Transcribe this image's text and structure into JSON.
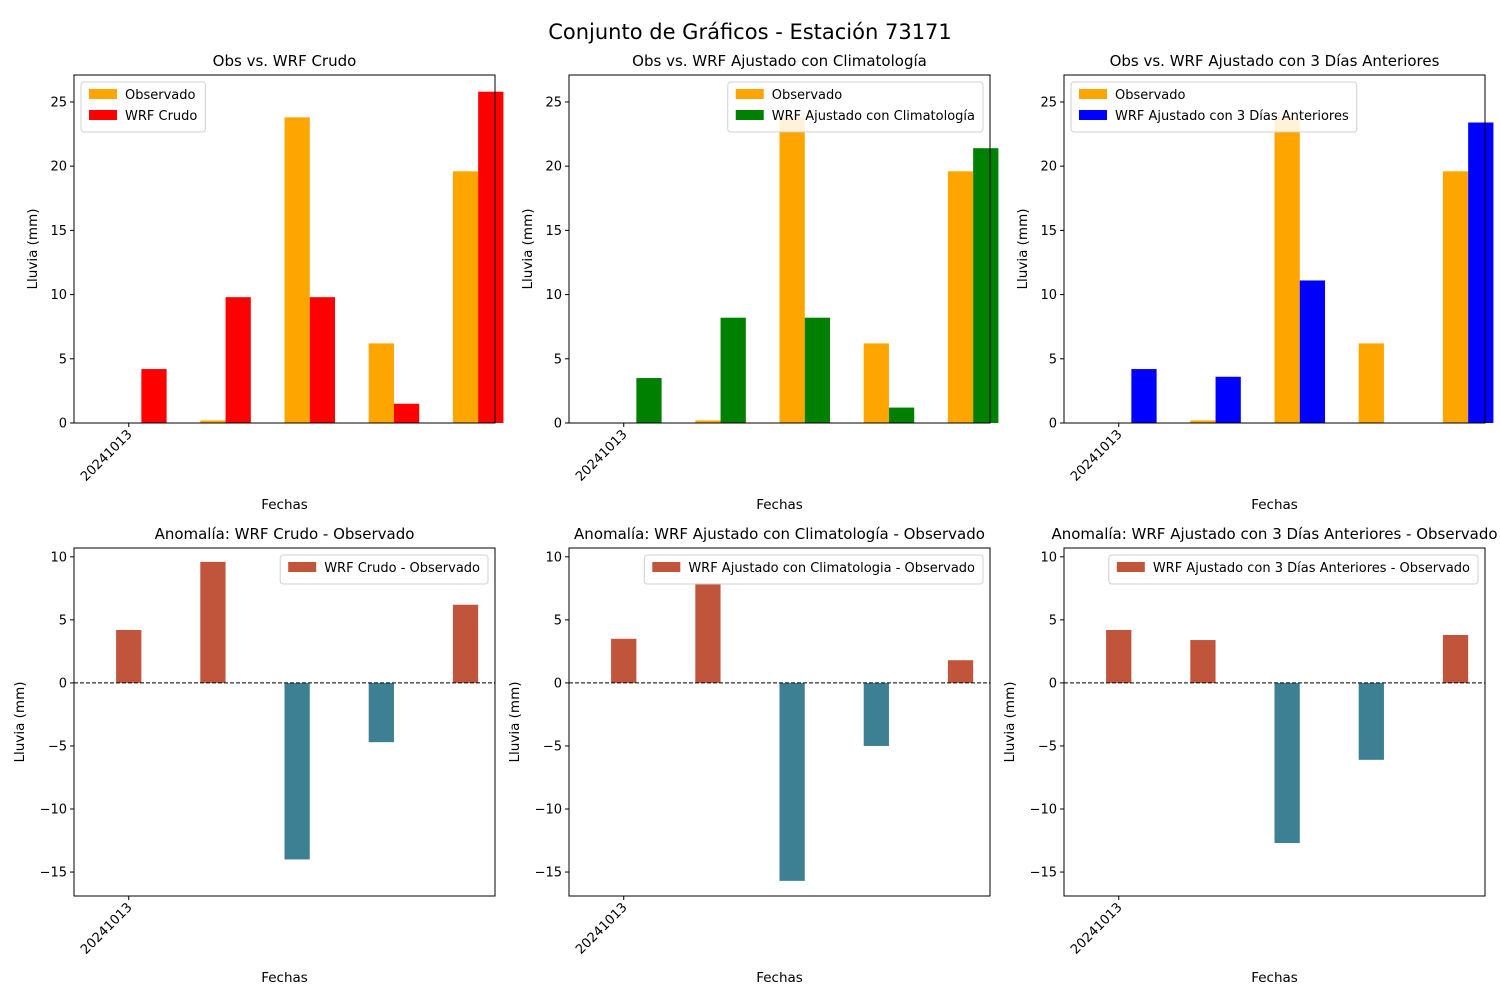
{
  "figure": {
    "suptitle": "Conjunto de Gráficos - Estación 73171"
  },
  "chart_data": [
    {
      "type": "bar",
      "title": "Obs vs. WRF Crudo",
      "xlabel": "Fechas",
      "ylabel": "Lluvia (mm)",
      "ylim": [
        0,
        27.1
      ],
      "yticks": [
        0,
        5,
        10,
        15,
        20,
        25
      ],
      "xtick_labels": [
        "20241013"
      ],
      "legend_position": "upper-left",
      "series": [
        {
          "name": "Observado",
          "color": "#ffa500",
          "values": [
            0,
            0.2,
            23.8,
            6.2,
            19.6
          ]
        },
        {
          "name": "WRF Crudo",
          "color": "#ff0000",
          "values": [
            4.2,
            9.8,
            9.8,
            1.5,
            25.8
          ]
        }
      ]
    },
    {
      "type": "bar",
      "title": "Obs vs. WRF Ajustado con Climatología",
      "xlabel": "Fechas",
      "ylabel": "Lluvia (mm)",
      "ylim": [
        0,
        27.1
      ],
      "yticks": [
        0,
        5,
        10,
        15,
        20,
        25
      ],
      "xtick_labels": [
        "20241013"
      ],
      "legend_position": "upper-right",
      "series": [
        {
          "name": "Observado",
          "color": "#ffa500",
          "values": [
            0,
            0.2,
            23.8,
            6.2,
            19.6
          ]
        },
        {
          "name": "WRF Ajustado con Climatología",
          "color": "#008000",
          "values": [
            3.5,
            8.2,
            8.2,
            1.2,
            21.4
          ]
        }
      ]
    },
    {
      "type": "bar",
      "title": "Obs vs. WRF Ajustado con 3 Días Anteriores",
      "xlabel": "Fechas",
      "ylabel": "Lluvia (mm)",
      "ylim": [
        0,
        27.1
      ],
      "yticks": [
        0,
        5,
        10,
        15,
        20,
        25
      ],
      "xtick_labels": [
        "20241013"
      ],
      "legend_position": "upper-left",
      "series": [
        {
          "name": "Observado",
          "color": "#ffa500",
          "values": [
            0,
            0.2,
            23.8,
            6.2,
            19.6
          ]
        },
        {
          "name": "WRF Ajustado con 3 Días Anteriores",
          "color": "#0000ff",
          "values": [
            4.2,
            3.6,
            11.1,
            0,
            23.4
          ]
        }
      ]
    },
    {
      "type": "bar",
      "title": "Anomalía: WRF Crudo - Observado",
      "xlabel": "Fechas",
      "ylabel": "Lluvia (mm)",
      "ylim": [
        -16.9,
        10.7
      ],
      "yticks": [
        -15,
        -10,
        -5,
        0,
        5,
        10
      ],
      "xtick_labels": [
        "20241013"
      ],
      "legend_position": "upper-right",
      "positive_color": "#c1553b",
      "negative_color": "#3d7f93",
      "series": [
        {
          "name": "WRF Crudo - Observado",
          "values": [
            4.2,
            9.6,
            -14.0,
            -4.7,
            6.2
          ]
        }
      ]
    },
    {
      "type": "bar",
      "title": "Anomalía: WRF Ajustado con Climatología - Observado",
      "xlabel": "Fechas",
      "ylabel": "Lluvia (mm)",
      "ylim": [
        -16.9,
        10.7
      ],
      "yticks": [
        -15,
        -10,
        -5,
        0,
        5,
        10
      ],
      "xtick_labels": [
        "20241013"
      ],
      "legend_position": "upper-right",
      "positive_color": "#c1553b",
      "negative_color": "#3d7f93",
      "series": [
        {
          "name": "WRF Ajustado con Climatologia - Observado",
          "values": [
            3.5,
            7.9,
            -15.7,
            -5.0,
            1.8
          ]
        }
      ]
    },
    {
      "type": "bar",
      "title": "Anomalía: WRF Ajustado con 3 Días Anteriores - Observado",
      "xlabel": "Fechas",
      "ylabel": "Lluvia (mm)",
      "ylim": [
        -16.9,
        10.7
      ],
      "yticks": [
        -15,
        -10,
        -5,
        0,
        5,
        10
      ],
      "xtick_labels": [
        "20241013"
      ],
      "legend_position": "upper-right",
      "positive_color": "#c1553b",
      "negative_color": "#3d7f93",
      "series": [
        {
          "name": "WRF Ajustado con 3 Días Anteriores - Observado",
          "values": [
            4.2,
            3.4,
            -12.7,
            -6.1,
            3.8
          ]
        }
      ]
    }
  ]
}
